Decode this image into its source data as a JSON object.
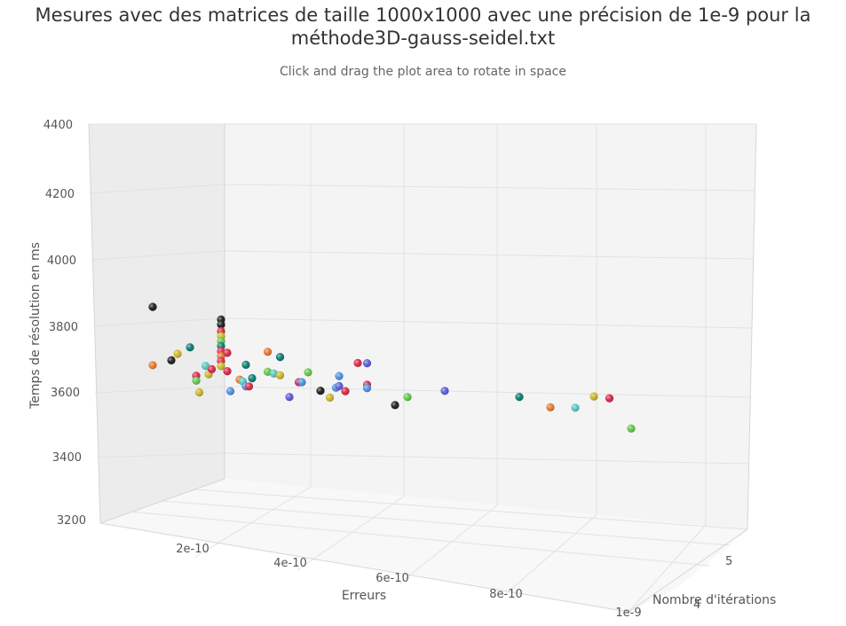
{
  "chart_data": {
    "type": "scatter3d",
    "title": "Mesures avec des matrices de taille 1000x1000 avec une précision de 1e-9 pour la méthode3D-gauss-seidel.txt",
    "subtitle": "Click and drag the plot area to rotate in space",
    "xlabel": "Erreurs",
    "ylabel": "Temps de résolution en ms",
    "zlabel": "Nombre d'itérations",
    "ylim": [
      3200,
      4400
    ],
    "y_ticks": [
      "3200",
      "3400",
      "3600",
      "3800",
      "4000",
      "4200",
      "4400"
    ],
    "x_ticks": [
      "2e-10",
      "4e-10",
      "6e-10",
      "8e-10",
      "1e-9"
    ],
    "z_ticks": [
      "4",
      "5"
    ],
    "points": [
      {
        "x": 5e-11,
        "y": 3865,
        "color": "#1c1c1c"
      },
      {
        "x": 5e-11,
        "y": 3690,
        "color": "#e2782c"
      },
      {
        "x": 8e-11,
        "y": 3705,
        "color": "#1c1c1c"
      },
      {
        "x": 9e-11,
        "y": 3725,
        "color": "#c8b427"
      },
      {
        "x": 1.1e-10,
        "y": 3745,
        "color": "#0b7a6f"
      },
      {
        "x": 1.2e-10,
        "y": 3660,
        "color": "#d7264a"
      },
      {
        "x": 1.2e-10,
        "y": 3645,
        "color": "#62c44a"
      },
      {
        "x": 1.25e-10,
        "y": 3610,
        "color": "#c8b427"
      },
      {
        "x": 1.35e-10,
        "y": 3690,
        "color": "#57c4c2"
      },
      {
        "x": 1.4e-10,
        "y": 3665,
        "color": "#c8b427"
      },
      {
        "x": 1.45e-10,
        "y": 3680,
        "color": "#d7264a"
      },
      {
        "x": 1.6e-10,
        "y": 3830,
        "color": "#1c1c1c"
      },
      {
        "x": 1.6e-10,
        "y": 3815,
        "color": "#1c1c1c"
      },
      {
        "x": 1.6e-10,
        "y": 3795,
        "color": "#d7264a"
      },
      {
        "x": 1.6e-10,
        "y": 3780,
        "color": "#c8b427"
      },
      {
        "x": 1.6e-10,
        "y": 3765,
        "color": "#62c44a"
      },
      {
        "x": 1.6e-10,
        "y": 3750,
        "color": "#0b7a6f"
      },
      {
        "x": 1.6e-10,
        "y": 3735,
        "color": "#d7264a"
      },
      {
        "x": 1.6e-10,
        "y": 3720,
        "color": "#e2782c"
      },
      {
        "x": 1.6e-10,
        "y": 3705,
        "color": "#d7264a"
      },
      {
        "x": 1.6e-10,
        "y": 3690,
        "color": "#c8b427"
      },
      {
        "x": 1.7e-10,
        "y": 3730,
        "color": "#d7264a"
      },
      {
        "x": 1.7e-10,
        "y": 3675,
        "color": "#d7264a"
      },
      {
        "x": 1.75e-10,
        "y": 3615,
        "color": "#4d8fdc"
      },
      {
        "x": 1.9e-10,
        "y": 3650,
        "color": "#e2782c"
      },
      {
        "x": 1.95e-10,
        "y": 3645,
        "color": "#57c4c2"
      },
      {
        "x": 2e-10,
        "y": 3695,
        "color": "#0b7a6f"
      },
      {
        "x": 2e-10,
        "y": 3630,
        "color": "#4d8fdc"
      },
      {
        "x": 2.05e-10,
        "y": 3630,
        "color": "#d7264a"
      },
      {
        "x": 2.1e-10,
        "y": 3655,
        "color": "#0b7a6f"
      },
      {
        "x": 2.35e-10,
        "y": 3735,
        "color": "#e2782c"
      },
      {
        "x": 2.35e-10,
        "y": 3675,
        "color": "#62c44a"
      },
      {
        "x": 2.45e-10,
        "y": 3670,
        "color": "#57c4c2"
      },
      {
        "x": 2.55e-10,
        "y": 3720,
        "color": "#0b7a6f"
      },
      {
        "x": 2.55e-10,
        "y": 3665,
        "color": "#c8b427"
      },
      {
        "x": 2.7e-10,
        "y": 3600,
        "color": "#5a5ad6"
      },
      {
        "x": 2.85e-10,
        "y": 3645,
        "color": "#d7264a"
      },
      {
        "x": 2.9e-10,
        "y": 3645,
        "color": "#4d8fdc"
      },
      {
        "x": 3e-10,
        "y": 3675,
        "color": "#62c44a"
      },
      {
        "x": 3.2e-10,
        "y": 3620,
        "color": "#1c1c1c"
      },
      {
        "x": 3.35e-10,
        "y": 3600,
        "color": "#c8b427"
      },
      {
        "x": 3.45e-10,
        "y": 3630,
        "color": "#4d8fdc"
      },
      {
        "x": 3.5e-10,
        "y": 3635,
        "color": "#5a5ad6"
      },
      {
        "x": 3.5e-10,
        "y": 3665,
        "color": "#4d8fdc"
      },
      {
        "x": 3.6e-10,
        "y": 3620,
        "color": "#d7264a"
      },
      {
        "x": 3.8e-10,
        "y": 3705,
        "color": "#d7264a"
      },
      {
        "x": 3.95e-10,
        "y": 3705,
        "color": "#5a5ad6"
      },
      {
        "x": 3.95e-10,
        "y": 3640,
        "color": "#d7264a"
      },
      {
        "x": 3.95e-10,
        "y": 3630,
        "color": "#4d8fdc"
      },
      {
        "x": 4.4e-10,
        "y": 3580,
        "color": "#1c1c1c"
      },
      {
        "x": 4.6e-10,
        "y": 3605,
        "color": "#62c44a"
      },
      {
        "x": 5.2e-10,
        "y": 3625,
        "color": "#5a5ad6"
      },
      {
        "x": 6.4e-10,
        "y": 3610,
        "color": "#0b7a6f"
      },
      {
        "x": 6.9e-10,
        "y": 3580,
        "color": "#e2782c"
      },
      {
        "x": 7.3e-10,
        "y": 3580,
        "color": "#57c4c2"
      },
      {
        "x": 7.6e-10,
        "y": 3615,
        "color": "#c8b427"
      },
      {
        "x": 7.85e-10,
        "y": 3610,
        "color": "#d7264a"
      },
      {
        "x": 8.2e-10,
        "y": 3520,
        "color": "#62c44a"
      }
    ]
  }
}
